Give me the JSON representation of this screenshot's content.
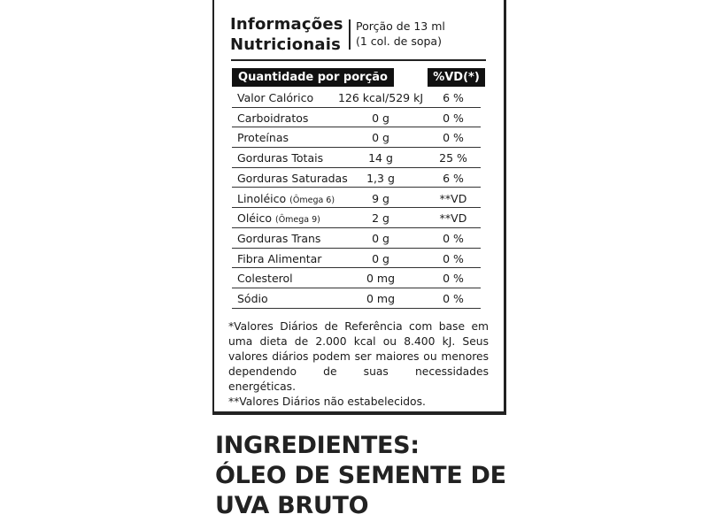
{
  "label": {
    "title_line1": "Informações",
    "title_line2": "Nutricionais",
    "portion_line1": "Porção de 13 ml",
    "portion_line2": "(1 col. de sopa)",
    "header_quantity": "Quantidade por porção",
    "header_vd": "%VD(*)",
    "rows": [
      {
        "name": "Valor Calórico",
        "sub": "",
        "amount": "126 kcal/529 kJ",
        "vd": "6 %"
      },
      {
        "name": "Carboidratos",
        "sub": "",
        "amount": "0 g",
        "vd": "0 %"
      },
      {
        "name": "Proteínas",
        "sub": "",
        "amount": "0 g",
        "vd": "0 %"
      },
      {
        "name": "Gorduras Totais",
        "sub": "",
        "amount": "14 g",
        "vd": "25 %"
      },
      {
        "name": "Gorduras Saturadas",
        "sub": "",
        "amount": "1,3 g",
        "vd": "6 %"
      },
      {
        "name": "Linoléico",
        "sub": "(Ômega 6)",
        "amount": "9 g",
        "vd": "**VD"
      },
      {
        "name": "Oléico",
        "sub": "(Ômega 9)",
        "amount": "2 g",
        "vd": "**VD"
      },
      {
        "name": "Gorduras Trans",
        "sub": "",
        "amount": "0 g",
        "vd": "0 %"
      },
      {
        "name": "Fibra Alimentar",
        "sub": "",
        "amount": "0 g",
        "vd": "0 %"
      },
      {
        "name": "Colesterol",
        "sub": "",
        "amount": "0 mg",
        "vd": "0 %"
      },
      {
        "name": "Sódio",
        "sub": "",
        "amount": "0 mg",
        "vd": "0 %"
      }
    ],
    "footnote1": "*Valores Diários de Referência com base em uma dieta de 2.000 kcal ou 8.400 kJ. Seus valores diários podem ser maiores ou menores dependendo de suas necessidades energéticas.",
    "footnote2": "**Valores Diários não estabelecidos."
  },
  "ingredients": {
    "line1": "INGREDIENTES:",
    "line2": "ÓLEO DE SEMENTE DE",
    "line3": "UVA BRUTO"
  }
}
